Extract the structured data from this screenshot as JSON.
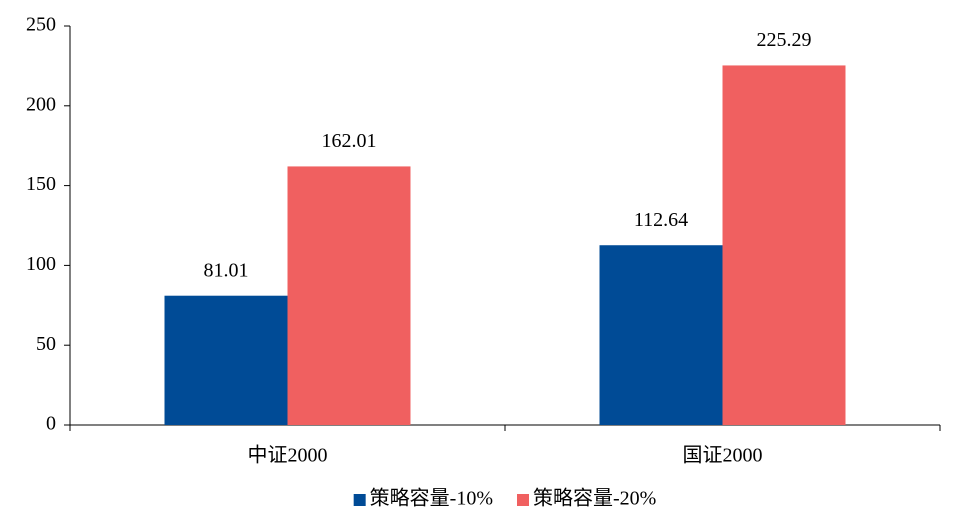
{
  "chart_data": {
    "type": "bar",
    "categories": [
      "中证2000",
      "国证2000"
    ],
    "series": [
      {
        "name": "策略容量-10%",
        "color": "#004b96",
        "values": [
          81.01,
          112.64
        ]
      },
      {
        "name": "策略容量-20%",
        "color": "#f06060",
        "values": [
          162.01,
          225.29
        ]
      }
    ],
    "ylim": [
      0,
      250
    ],
    "yticks": [
      0,
      50,
      100,
      150,
      200,
      250
    ],
    "grid": false,
    "legend": "bottom"
  }
}
